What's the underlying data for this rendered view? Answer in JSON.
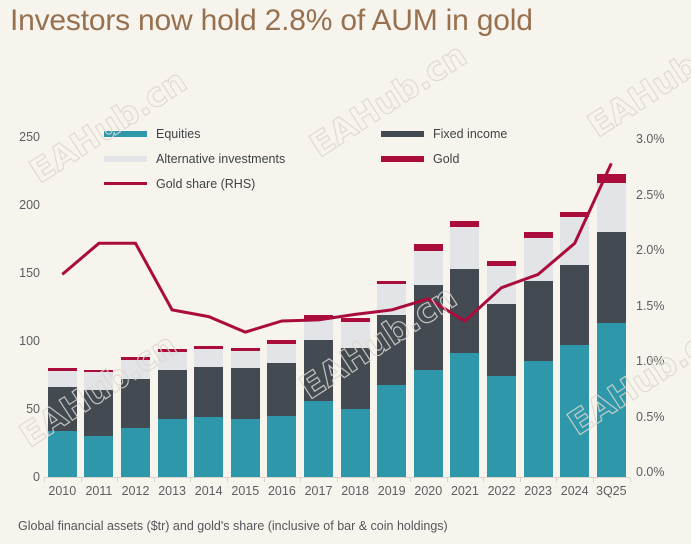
{
  "title": "Investors now hold 2.8% of AUM in gold",
  "footnote": "Global financial assets ($tr) and gold's share (inclusive of bar & coin holdings)",
  "watermark": "EAHub.cn",
  "colors": {
    "background": "#f7f4ee",
    "title": "#97714f",
    "equities": "#2e98aa",
    "fixed_income": "#434a52",
    "alternatives": "#e3e4e7",
    "gold": "#aa0c3c",
    "axis_text": "#5b5e63",
    "axis_line": "#d9d5cc"
  },
  "legend": {
    "col1": [
      {
        "label": "Equities",
        "swatch": "equities",
        "kind": "box"
      },
      {
        "label": "Alternative investments",
        "swatch": "alternatives",
        "kind": "box"
      },
      {
        "label": "Gold share (RHS)",
        "swatch": "gold",
        "kind": "line"
      }
    ],
    "col2": [
      {
        "label": "Fixed income",
        "swatch": "fixed_income",
        "kind": "box"
      },
      {
        "label": "Gold",
        "swatch": "gold",
        "kind": "box"
      }
    ]
  },
  "chart_data": {
    "type": "bar",
    "stacked": true,
    "title": "Investors now hold 2.8% of AUM in gold",
    "subtitle": "Global financial assets ($tr) and gold's share (inclusive of bar & coin holdings)",
    "categories": [
      "2010",
      "2011",
      "2012",
      "2013",
      "2014",
      "2015",
      "2016",
      "2017",
      "2018",
      "2019",
      "2020",
      "2021",
      "2022",
      "2023",
      "2024",
      "3Q25"
    ],
    "series": [
      {
        "name": "Equities",
        "color_key": "equities",
        "values": [
          34,
          30,
          36,
          43,
          44,
          43,
          45,
          56,
          50,
          68,
          79,
          91,
          74,
          85,
          97,
          113
        ]
      },
      {
        "name": "Fixed income",
        "color_key": "fixed_income",
        "values": [
          32,
          34,
          36,
          36,
          37,
          37,
          39,
          45,
          45,
          51,
          62,
          62,
          53,
          59,
          59,
          67
        ]
      },
      {
        "name": "Alternative investments",
        "color_key": "alternatives",
        "values": [
          12,
          13,
          14,
          13,
          13,
          13,
          14,
          15,
          19,
          23,
          25,
          31,
          28,
          32,
          35,
          36
        ]
      },
      {
        "name": "Gold",
        "color_key": "gold",
        "values": [
          2,
          2,
          2,
          2,
          2,
          2,
          3,
          3,
          3,
          2,
          5,
          4,
          4,
          4,
          4,
          7
        ]
      }
    ],
    "line_series": {
      "name": "Gold share (RHS)",
      "axis": "right",
      "color_key": "gold",
      "values": [
        1.78,
        2.06,
        2.06,
        1.46,
        1.4,
        1.26,
        1.36,
        1.37,
        1.42,
        1.46,
        1.56,
        1.36,
        1.66,
        1.78,
        2.06,
        2.78
      ]
    },
    "left_axis": {
      "ticks": [
        0,
        50,
        100,
        150,
        200,
        250
      ],
      "range": [
        0,
        250
      ],
      "label": "$tr"
    },
    "right_axis": {
      "ticks": [
        "0.0%",
        "0.5%",
        "1.0%",
        "1.5%",
        "2.0%",
        "2.5%",
        "3.0%"
      ],
      "tick_values": [
        0,
        0.5,
        1.0,
        1.5,
        2.0,
        2.5,
        3.0
      ],
      "range": [
        0,
        3
      ]
    },
    "legend_position": "top",
    "grid": false
  }
}
